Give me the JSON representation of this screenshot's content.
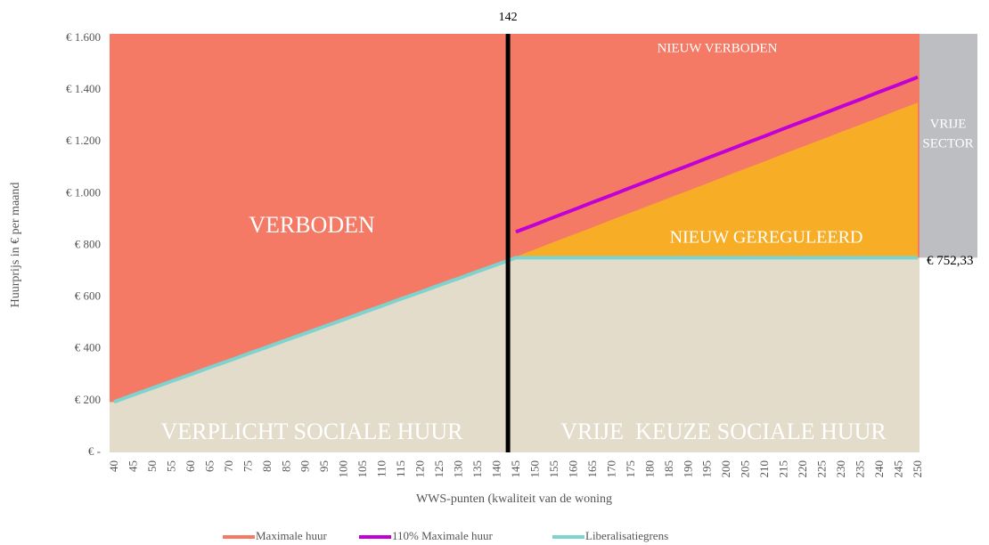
{
  "chart_data": {
    "type": "line",
    "x_label": "WWS-punten (kwaliteit van de woning",
    "y_label": "Huurprijs in € per maand",
    "categories": [
      "40",
      "45",
      "50",
      "55",
      "60",
      "65",
      "70",
      "75",
      "80",
      "85",
      "90",
      "95",
      "100",
      "105",
      "110",
      "115",
      "120",
      "125",
      "130",
      "135",
      "140",
      "145",
      "150",
      "155",
      "160",
      "165",
      "170",
      "175",
      "180",
      "185",
      "190",
      "195",
      "200",
      "205",
      "210",
      "215",
      "220",
      "225",
      "230",
      "235",
      "240",
      "245",
      "250"
    ],
    "series": [
      {
        "name": "Maximale huur",
        "color": "#f47a66",
        "values": [
          205,
          231,
          258,
          284,
          311,
          337,
          364,
          390,
          416,
          443,
          469,
          496,
          522,
          549,
          575,
          601,
          628,
          654,
          681,
          707,
          734,
          760,
          788,
          817,
          845,
          873,
          902,
          930,
          958,
          987,
          1015,
          1043,
          1072,
          1100,
          1128,
          1157,
          1185,
          1213,
          1242,
          1270,
          1298,
          1327,
          1355
        ]
      },
      {
        "name": "110% Maximale huur",
        "color": "#c000d6",
        "values": [
          null,
          null,
          null,
          null,
          null,
          null,
          null,
          null,
          null,
          null,
          null,
          null,
          null,
          null,
          null,
          null,
          null,
          null,
          null,
          null,
          null,
          852,
          880,
          909,
          937,
          966,
          994,
          1023,
          1051,
          1080,
          1108,
          1137,
          1165,
          1194,
          1222,
          1251,
          1279,
          1307,
          1336,
          1364,
          1393,
          1421,
          1450
        ]
      },
      {
        "name": "Liberalisatiegrens",
        "color": "#7fd3cf",
        "values": [
          195,
          222,
          248,
          275,
          301,
          328,
          354,
          381,
          407,
          434,
          460,
          487,
          513,
          540,
          566,
          593,
          619,
          646,
          672,
          699,
          725,
          752.33,
          752.33,
          752.33,
          752.33,
          752.33,
          752.33,
          752.33,
          752.33,
          752.33,
          752.33,
          752.33,
          752.33,
          752.33,
          752.33,
          752.33,
          752.33,
          752.33,
          752.33,
          752.33,
          752.33,
          752.33,
          752.33
        ]
      }
    ],
    "ylim": [
      0,
      1600
    ],
    "yticks": [
      {
        "value": 0,
        "label": "€ -"
      },
      {
        "value": 200,
        "label": "€ 200"
      },
      {
        "value": 400,
        "label": "€ 400"
      },
      {
        "value": 600,
        "label": "€ 600"
      },
      {
        "value": 800,
        "label": "€ 800"
      },
      {
        "value": 1000,
        "label": "€ 1.000"
      },
      {
        "value": 1200,
        "label": "€ 1.200"
      },
      {
        "value": 1400,
        "label": "€ 1.400"
      },
      {
        "value": 1600,
        "label": "€ 1.600"
      }
    ],
    "vline": {
      "value": 142,
      "label": "142"
    },
    "limit_label": "€ 752,33",
    "region_labels": {
      "forbidden": "VERBODEN",
      "new_forbidden": "NIEUW VERBODEN",
      "new_regulated": "NIEUW GEREGULEERD",
      "mandatory_social": "VERPLICHT SOCIALE HUUR",
      "free_choice_social": "VRIJE  KEUZE SOCIALE HUUR",
      "free_sector": [
        "VRIJE",
        "SECTOR"
      ]
    },
    "region_colors": {
      "forbidden": "#f47a66",
      "regulated": "#f7ae26",
      "social": "#e3dccb",
      "free_sector": "#bcbec2"
    },
    "legend": "bottom"
  }
}
